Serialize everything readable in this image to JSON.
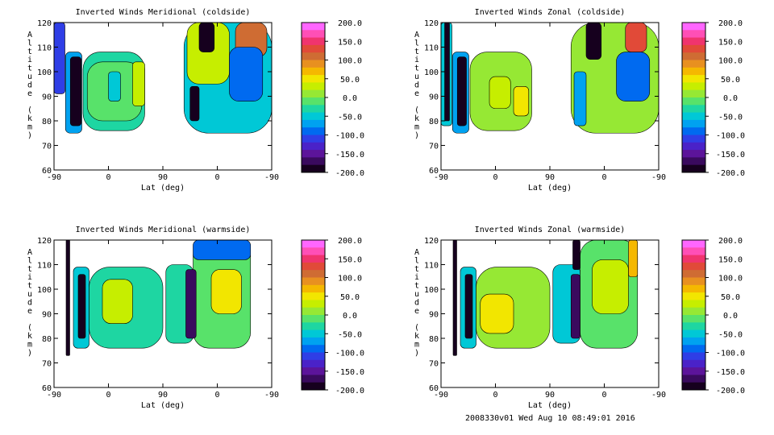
{
  "footer": "2008330v01 Wed Aug 10 08:49:01 2016",
  "colorbar": {
    "ticks": [
      "200.0",
      "150.0",
      "100.0",
      "50.0",
      "0.0",
      "-50.0",
      "-100.0",
      "-150.0",
      "-200.0"
    ],
    "colors": [
      "#ff66ff",
      "#ff4fb6",
      "#f0346e",
      "#e14a38",
      "#cf6c33",
      "#e89020",
      "#f5b800",
      "#f2e600",
      "#c6ee00",
      "#96e834",
      "#58e26a",
      "#1ed6a2",
      "#00c8d6",
      "#00a2f0",
      "#006af0",
      "#2f3ee6",
      "#4a22c8",
      "#5c149a",
      "#3a0a5e",
      "#16001e"
    ],
    "range": [
      -200,
      200
    ]
  },
  "chart_data": [
    {
      "type": "heatmap",
      "title": "Inverted Winds Meridional (coldside)",
      "xlabel": "Lat (deg)",
      "ylabel": "Altitude (km)",
      "xticks": [
        "-90",
        "0",
        "90",
        "0",
        "-90"
      ],
      "yticks": [
        "60",
        "70",
        "80",
        "90",
        "100",
        "110",
        "120"
      ],
      "ylim": [
        60,
        120
      ],
      "colorbar_range": [
        -200,
        200
      ],
      "blobs": [
        {
          "x": [
            -90,
            -72
          ],
          "y": [
            91,
            120
          ],
          "v": -100
        },
        {
          "x": [
            -71,
            -44
          ],
          "y": [
            75,
            108
          ],
          "v": -70
        },
        {
          "x": [
            -63,
            -45
          ],
          "y": [
            78,
            106
          ],
          "v": -190
        },
        {
          "x": [
            -42,
            60
          ],
          "y": [
            76,
            108
          ],
          "v": -25
        },
        {
          "x": [
            -35,
            55
          ],
          "y": [
            80,
            104
          ],
          "v": 0
        },
        {
          "x": [
            40,
            60
          ],
          "y": [
            86,
            104
          ],
          "v": 40
        },
        {
          "x": [
            0,
            20
          ],
          "y": [
            88,
            100
          ],
          "v": -50
        },
        {
          "x": [
            125,
            270
          ],
          "y": [
            75,
            120
          ],
          "v": -40
        },
        {
          "x": [
            130,
            200
          ],
          "y": [
            95,
            120
          ],
          "v": 30
        },
        {
          "x": [
            210,
            262
          ],
          "y": [
            106,
            120
          ],
          "v": 110
        },
        {
          "x": [
            200,
            255
          ],
          "y": [
            88,
            110
          ],
          "v": -85
        },
        {
          "x": [
            135,
            150
          ],
          "y": [
            80,
            94
          ],
          "v": -180
        },
        {
          "x": [
            150,
            175
          ],
          "y": [
            108,
            120
          ],
          "v": -200
        }
      ]
    },
    {
      "type": "heatmap",
      "title": "Inverted Winds Zonal (coldside)",
      "xlabel": "Lat (deg)",
      "ylabel": "Altitude (km)",
      "xticks": [
        "-90",
        "0",
        "90",
        "0",
        "-90"
      ],
      "yticks": [
        "60",
        "70",
        "80",
        "90",
        "100",
        "110",
        "120"
      ],
      "ylim": [
        60,
        120
      ],
      "colorbar_range": [
        -200,
        200
      ],
      "blobs": [
        {
          "x": [
            -90,
            -72
          ],
          "y": [
            78,
            120
          ],
          "v": -40
        },
        {
          "x": [
            -84,
            -76
          ],
          "y": [
            80,
            120
          ],
          "v": -180
        },
        {
          "x": [
            -71,
            -44
          ],
          "y": [
            75,
            108
          ],
          "v": -60
        },
        {
          "x": [
            -63,
            -48
          ],
          "y": [
            78,
            106
          ],
          "v": -190
        },
        {
          "x": [
            -42,
            60
          ],
          "y": [
            76,
            108
          ],
          "v": 10
        },
        {
          "x": [
            -10,
            25
          ],
          "y": [
            85,
            98
          ],
          "v": 40
        },
        {
          "x": [
            30,
            55
          ],
          "y": [
            82,
            94
          ],
          "v": 50
        },
        {
          "x": [
            125,
            270
          ],
          "y": [
            75,
            120
          ],
          "v": 10
        },
        {
          "x": [
            200,
            255
          ],
          "y": [
            88,
            108
          ],
          "v": -90
        },
        {
          "x": [
            215,
            250
          ],
          "y": [
            108,
            120
          ],
          "v": 140
        },
        {
          "x": [
            150,
            175
          ],
          "y": [
            105,
            120
          ],
          "v": -200
        },
        {
          "x": [
            130,
            150
          ],
          "y": [
            78,
            100
          ],
          "v": -60
        }
      ]
    },
    {
      "type": "heatmap",
      "title": "Inverted Winds Meridional (warmside)",
      "xlabel": "Lat (deg)",
      "ylabel": "Altitude (km)",
      "xticks": [
        "-90",
        "0",
        "90",
        "0",
        "-90"
      ],
      "yticks": [
        "60",
        "70",
        "80",
        "90",
        "100",
        "110",
        "120"
      ],
      "ylim": [
        60,
        120
      ],
      "colorbar_range": [
        -200,
        200
      ],
      "blobs": [
        {
          "x": [
            -70,
            -64
          ],
          "y": [
            73,
            120
          ],
          "v": -200
        },
        {
          "x": [
            -58,
            -32
          ],
          "y": [
            76,
            109
          ],
          "v": -40
        },
        {
          "x": [
            -50,
            -38
          ],
          "y": [
            80,
            106
          ],
          "v": -190
        },
        {
          "x": [
            -32,
            90
          ],
          "y": [
            76,
            109
          ],
          "v": -20
        },
        {
          "x": [
            -10,
            40
          ],
          "y": [
            86,
            104
          ],
          "v": 30
        },
        {
          "x": [
            95,
            140
          ],
          "y": [
            78,
            110
          ],
          "v": -30
        },
        {
          "x": [
            140,
            235
          ],
          "y": [
            76,
            120
          ],
          "v": -10
        },
        {
          "x": [
            170,
            220
          ],
          "y": [
            90,
            108
          ],
          "v": 50
        },
        {
          "x": [
            128,
            145
          ],
          "y": [
            80,
            108
          ],
          "v": -170
        },
        {
          "x": [
            140,
            235
          ],
          "y": [
            112,
            120
          ],
          "v": -90
        }
      ]
    },
    {
      "type": "heatmap",
      "title": "Inverted Winds Zonal (warmside)",
      "xlabel": "Lat (deg)",
      "ylabel": "Altitude (km)",
      "xticks": [
        "-90",
        "0",
        "90",
        "0",
        "-90"
      ],
      "yticks": [
        "60",
        "70",
        "80",
        "90",
        "100",
        "110",
        "120"
      ],
      "ylim": [
        60,
        120
      ],
      "colorbar_range": [
        -200,
        200
      ],
      "blobs": [
        {
          "x": [
            -70,
            -64
          ],
          "y": [
            73,
            120
          ],
          "v": -200
        },
        {
          "x": [
            -58,
            -32
          ],
          "y": [
            76,
            109
          ],
          "v": -40
        },
        {
          "x": [
            -50,
            -38
          ],
          "y": [
            80,
            106
          ],
          "v": -190
        },
        {
          "x": [
            -32,
            90
          ],
          "y": [
            76,
            109
          ],
          "v": 20
        },
        {
          "x": [
            -25,
            30
          ],
          "y": [
            82,
            98
          ],
          "v": 50
        },
        {
          "x": [
            95,
            140
          ],
          "y": [
            78,
            110
          ],
          "v": -40
        },
        {
          "x": [
            140,
            235
          ],
          "y": [
            76,
            120
          ],
          "v": 0
        },
        {
          "x": [
            160,
            220
          ],
          "y": [
            90,
            112
          ],
          "v": 40
        },
        {
          "x": [
            125,
            140
          ],
          "y": [
            80,
            106
          ],
          "v": -160
        },
        {
          "x": [
            128,
            140
          ],
          "y": [
            108,
            120
          ],
          "v": -200
        },
        {
          "x": [
            220,
            235
          ],
          "y": [
            105,
            120
          ],
          "v": 80
        }
      ]
    }
  ]
}
